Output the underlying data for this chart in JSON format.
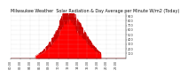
{
  "title": "Milwaukee Weather  Solar Radiation & Day Average per Minute W/m2 (Today)",
  "bg_color": "#ffffff",
  "fill_color": "#ff0000",
  "line_color": "#cc0000",
  "grid_color": "#aaaaaa",
  "ylim": [
    0,
    950
  ],
  "yticks": [
    100,
    200,
    300,
    400,
    500,
    600,
    700,
    800,
    900
  ],
  "title_fontsize": 3.5,
  "tick_fontsize": 2.5,
  "num_points": 1440,
  "peak_minute": 750,
  "peak_value": 870,
  "day_start": 310,
  "day_end": 1130
}
